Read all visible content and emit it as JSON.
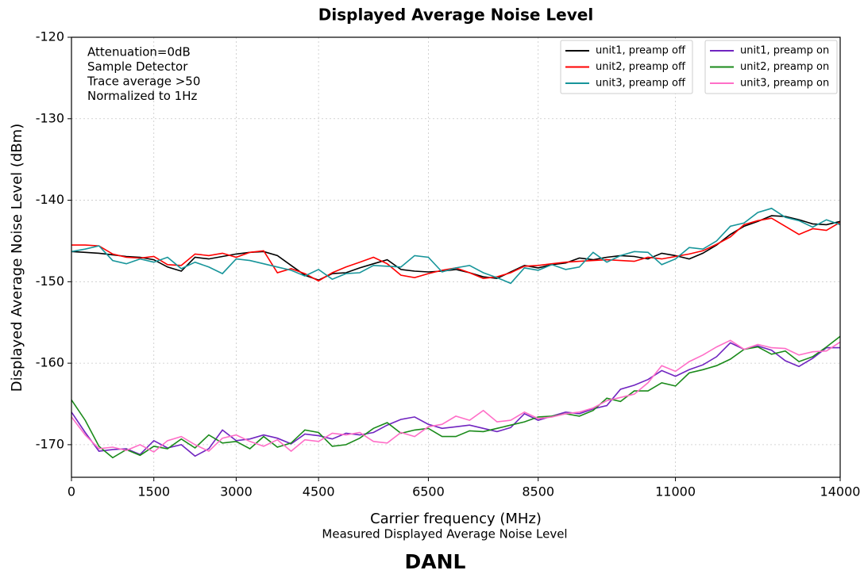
{
  "chart_data": {
    "type": "line",
    "title": "Displayed Average Noise Level",
    "x_label": "Carrier frequency (MHz)",
    "y_label": "Displayed Average Noise Level (dBm)",
    "caption": "Measured Displayed Average Noise Level",
    "footer": "DANL",
    "annotations": [
      "Attenuation=0dB",
      "Sample Detector",
      "Trace average >50",
      "Normalized to 1Hz"
    ],
    "grid": true,
    "legend": "upper right",
    "xlim": [
      0,
      14000
    ],
    "xticks": [
      0,
      1500,
      3000,
      4500,
      6500,
      8500,
      11000,
      14000
    ],
    "ylim": [
      -174,
      -120
    ],
    "yticks": [
      -120,
      -130,
      -140,
      -150,
      -160,
      -170
    ],
    "x": [
      0,
      250,
      500,
      750,
      1000,
      1250,
      1500,
      1750,
      2000,
      2250,
      2500,
      2750,
      3000,
      3250,
      3500,
      3750,
      4000,
      4250,
      4500,
      4750,
      5000,
      5250,
      5500,
      5750,
      6000,
      6250,
      6500,
      6750,
      7000,
      7250,
      7500,
      7750,
      8000,
      8250,
      8500,
      8750,
      9000,
      9250,
      9500,
      9750,
      10000,
      10250,
      10500,
      10750,
      11000,
      11250,
      11500,
      11750,
      12000,
      12250,
      12500,
      12750,
      13000,
      13250,
      13500,
      13750,
      14000
    ],
    "series": [
      {
        "name": "unit1, preamp off",
        "color": "#000000",
        "values": [
          -146.3,
          -146.4,
          -146.5,
          -146.7,
          -146.9,
          -147.0,
          -147.3,
          -148.2,
          -148.7,
          -147.0,
          -147.2,
          -146.9,
          -146.6,
          -146.4,
          -146.3,
          -146.8,
          -148.0,
          -149.2,
          -149.8,
          -149.0,
          -148.9,
          -148.3,
          -147.8,
          -147.3,
          -148.5,
          -148.7,
          -148.8,
          -148.7,
          -148.5,
          -148.9,
          -149.4,
          -149.6,
          -148.8,
          -148.0,
          -148.3,
          -147.9,
          -147.7,
          -147.1,
          -147.3,
          -147.0,
          -146.8,
          -146.9,
          -147.2,
          -146.5,
          -146.8,
          -147.2,
          -146.5,
          -145.5,
          -144.2,
          -143.2,
          -142.6,
          -141.9,
          -142.0,
          -142.4,
          -142.9,
          -143.0,
          -142.6
        ]
      },
      {
        "name": "unit2, preamp off",
        "color": "#ff0000",
        "values": [
          -145.5,
          -145.5,
          -145.6,
          -146.6,
          -147.0,
          -147.1,
          -146.9,
          -147.9,
          -148.0,
          -146.6,
          -146.8,
          -146.5,
          -147.0,
          -146.4,
          -146.2,
          -148.9,
          -148.4,
          -149.0,
          -149.9,
          -148.9,
          -148.2,
          -147.6,
          -147.0,
          -147.8,
          -149.2,
          -149.5,
          -149.0,
          -148.6,
          -148.3,
          -148.9,
          -149.6,
          -149.4,
          -148.9,
          -148.1,
          -148.0,
          -147.8,
          -147.6,
          -147.5,
          -147.4,
          -147.3,
          -147.4,
          -147.5,
          -147.0,
          -147.2,
          -146.9,
          -146.6,
          -146.2,
          -145.4,
          -144.5,
          -143.0,
          -142.5,
          -142.2,
          -143.2,
          -144.2,
          -143.5,
          -143.7,
          -142.7
        ]
      },
      {
        "name": "unit3, preamp off",
        "color": "#17959a",
        "values": [
          -146.3,
          -146.0,
          -145.6,
          -147.4,
          -147.8,
          -147.2,
          -147.6,
          -147.0,
          -148.4,
          -147.6,
          -148.2,
          -149.0,
          -147.2,
          -147.4,
          -147.8,
          -148.2,
          -148.6,
          -149.3,
          -148.5,
          -149.7,
          -149.0,
          -148.9,
          -148.0,
          -148.1,
          -148.2,
          -146.8,
          -147.0,
          -148.8,
          -148.3,
          -148.0,
          -148.9,
          -149.5,
          -150.2,
          -148.3,
          -148.6,
          -147.9,
          -148.5,
          -148.2,
          -146.4,
          -147.6,
          -146.8,
          -146.3,
          -146.4,
          -147.9,
          -147.2,
          -145.8,
          -146.0,
          -145.0,
          -143.2,
          -142.8,
          -141.5,
          -141.0,
          -142.1,
          -142.5,
          -143.3,
          -142.4,
          -143.0
        ]
      },
      {
        "name": "unit1, preamp on",
        "color": "#7024c0",
        "values": [
          -166.0,
          -168.5,
          -170.8,
          -170.6,
          -170.5,
          -171.2,
          -169.5,
          -170.4,
          -170.0,
          -171.4,
          -170.5,
          -168.2,
          -169.5,
          -169.3,
          -168.8,
          -169.2,
          -169.9,
          -168.7,
          -168.9,
          -169.3,
          -168.6,
          -168.8,
          -168.5,
          -167.6,
          -166.9,
          -166.6,
          -167.5,
          -168.0,
          -167.8,
          -167.6,
          -168.0,
          -168.4,
          -167.9,
          -166.2,
          -167.0,
          -166.5,
          -166.0,
          -166.2,
          -165.6,
          -165.2,
          -163.2,
          -162.7,
          -162.0,
          -160.9,
          -161.6,
          -160.8,
          -160.2,
          -159.2,
          -157.5,
          -158.3,
          -157.9,
          -158.4,
          -159.7,
          -160.4,
          -159.4,
          -158.1,
          -158.1
        ]
      },
      {
        "name": "unit2, preamp on",
        "color": "#1a8a1a",
        "values": [
          -164.5,
          -167.0,
          -170.2,
          -171.6,
          -170.6,
          -171.3,
          -170.2,
          -170.5,
          -169.3,
          -170.4,
          -168.8,
          -169.8,
          -169.6,
          -170.5,
          -169.0,
          -170.3,
          -169.8,
          -168.2,
          -168.5,
          -170.2,
          -170.0,
          -169.2,
          -168.0,
          -167.3,
          -168.6,
          -168.2,
          -168.0,
          -169.0,
          -169.0,
          -168.3,
          -168.4,
          -168.0,
          -167.6,
          -167.2,
          -166.6,
          -166.5,
          -166.2,
          -166.5,
          -165.8,
          -164.3,
          -164.7,
          -163.4,
          -163.4,
          -162.4,
          -162.8,
          -161.2,
          -160.8,
          -160.3,
          -159.5,
          -158.3,
          -158.0,
          -158.9,
          -158.5,
          -159.8,
          -159.2,
          -158.0,
          -156.7
        ]
      },
      {
        "name": "unit3, preamp on",
        "color": "#ff6ec7",
        "values": [
          -166.6,
          -168.8,
          -170.5,
          -170.3,
          -170.7,
          -170.0,
          -170.9,
          -169.5,
          -169.0,
          -170.0,
          -170.8,
          -169.2,
          -168.8,
          -169.6,
          -170.2,
          -169.4,
          -170.8,
          -169.4,
          -169.6,
          -168.6,
          -168.8,
          -168.5,
          -169.6,
          -169.8,
          -168.5,
          -169.0,
          -167.8,
          -167.5,
          -166.5,
          -167.0,
          -165.8,
          -167.2,
          -167.0,
          -166.0,
          -166.8,
          -166.6,
          -166.2,
          -166.0,
          -165.5,
          -164.6,
          -164.2,
          -163.8,
          -162.4,
          -160.3,
          -161.0,
          -159.8,
          -159.0,
          -158.0,
          -157.2,
          -158.3,
          -157.7,
          -158.1,
          -158.2,
          -159.0,
          -158.6,
          -158.5,
          -157.4
        ]
      }
    ]
  }
}
